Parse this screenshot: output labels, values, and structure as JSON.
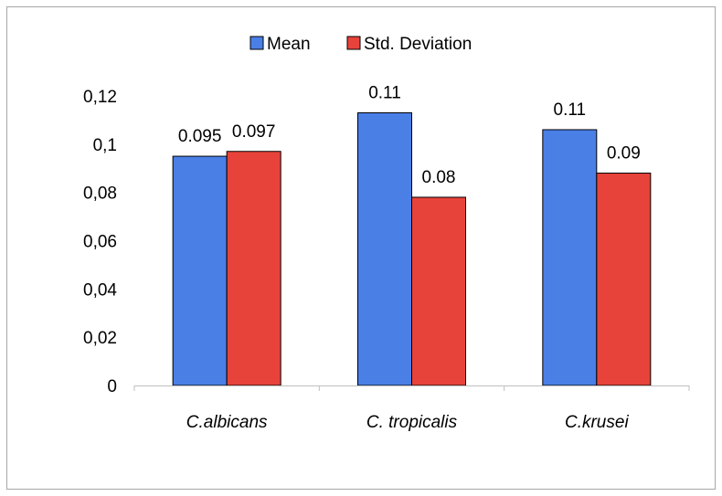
{
  "chart_data": {
    "type": "bar",
    "categories": [
      "C.albicans",
      "C. tropicalis",
      "C.krusei"
    ],
    "series": [
      {
        "name": "Mean",
        "values": [
          0.095,
          0.113,
          0.106
        ],
        "labels": [
          "0.095",
          "0.11",
          "0.11"
        ],
        "color": "#4a7fe6"
      },
      {
        "name": "Std. Deviation",
        "values": [
          0.097,
          0.078,
          0.088
        ],
        "labels": [
          "0.097",
          "0.08",
          "0.09"
        ],
        "color": "#e8433a"
      }
    ],
    "ylim": [
      0,
      0.12
    ],
    "yticks": [
      0,
      0.02,
      0.04,
      0.06,
      0.08,
      0.1,
      0.12
    ],
    "ytick_labels": [
      "0",
      "0,02",
      "0,04",
      "0,06",
      "0,08",
      "0,1",
      "0,12"
    ],
    "legend_position": "top",
    "grid": false,
    "title": "",
    "xlabel": "",
    "ylabel": ""
  }
}
